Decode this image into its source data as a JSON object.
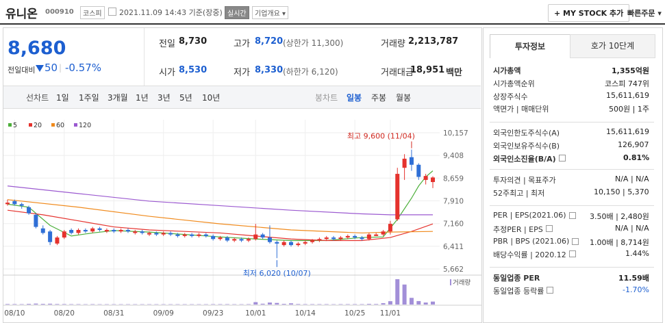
{
  "header": {
    "name": "유니온",
    "code": "000910",
    "market": "코스피",
    "time": "2021.11.09 14:43 기준(장중)",
    "realtime": "실시간",
    "company_info": "기업개요",
    "my_stock": "+ MY STOCK 추가",
    "quick_order": "빠른주문"
  },
  "price": {
    "current": "8,680",
    "change_label": "전일대비",
    "change": "50",
    "change_pct": "-0.57%"
  },
  "summary": [
    {
      "label": "전일",
      "value": "8,730"
    },
    {
      "label": "고가",
      "value": "8,720",
      "note": "(상한가 11,300)"
    },
    {
      "label": "거래량",
      "value": "2,213,787"
    },
    {
      "label": "시가",
      "value": "8,530"
    },
    {
      "label": "저가",
      "value": "8,330",
      "note": "(하한가 6,120)"
    },
    {
      "label": "거래대금",
      "value": "18,951",
      "unit": "백만"
    }
  ],
  "chart_tabs": {
    "line_label": "선차트",
    "line": [
      "1일",
      "1주일",
      "3개월",
      "1년",
      "3년",
      "5년",
      "10년"
    ],
    "candle_label": "봉차트",
    "candle": [
      "일봉",
      "주봉",
      "월봉"
    ]
  },
  "chart_data": {
    "type": "candlestick",
    "up_color": "#e5322d",
    "down_color": "#2f6fd6",
    "volume_color": "#a28fd8",
    "categories": [
      null,
      "08/10",
      null,
      null,
      null,
      null,
      null,
      null,
      "08/20",
      null,
      null,
      null,
      null,
      null,
      null,
      "08/31",
      null,
      null,
      null,
      null,
      null,
      null,
      "09/09",
      null,
      null,
      null,
      null,
      null,
      null,
      "09/23",
      null,
      null,
      null,
      null,
      null,
      "10/01",
      null,
      null,
      null,
      null,
      null,
      null,
      "10/14",
      null,
      null,
      null,
      null,
      null,
      null,
      "10/25",
      null,
      null,
      null,
      null,
      "11/01",
      null,
      null,
      null,
      null,
      null,
      null
    ],
    "open": [
      7800,
      7900,
      7800,
      7700,
      7450,
      7000,
      6900,
      6500,
      6700,
      6950,
      6850,
      6950,
      6900,
      7000,
      6900,
      6950,
      6900,
      6950,
      6850,
      6900,
      6800,
      6850,
      6800,
      6850,
      6800,
      6750,
      6800,
      6750,
      6800,
      6750,
      6650,
      6700,
      6600,
      6650,
      6600,
      6650,
      6800,
      6700,
      6550,
      6450,
      6550,
      6450,
      6500,
      6550,
      6600,
      6650,
      6700,
      6650,
      6700,
      6750,
      6700,
      6650,
      6750,
      6800,
      6900,
      7300,
      9000,
      9350,
      9100,
      8600,
      8530
    ],
    "high": [
      7950,
      7950,
      7850,
      7750,
      7500,
      7100,
      6950,
      6750,
      6950,
      7000,
      7000,
      7000,
      7050,
      7050,
      7000,
      7000,
      7000,
      7000,
      6950,
      6950,
      6900,
      6900,
      6900,
      6900,
      6850,
      6850,
      6850,
      6850,
      6850,
      6800,
      6750,
      6750,
      6700,
      6700,
      6700,
      7150,
      6850,
      7100,
      6600,
      6600,
      6600,
      6550,
      6600,
      6650,
      6700,
      6750,
      6750,
      6750,
      6800,
      6800,
      6750,
      6850,
      6850,
      6950,
      7250,
      9000,
      9450,
      9600,
      9150,
      8800,
      8720
    ],
    "low": [
      7750,
      7750,
      7650,
      7450,
      7000,
      6800,
      6450,
      6450,
      6650,
      6800,
      6800,
      6850,
      6850,
      6900,
      6850,
      6850,
      6850,
      6850,
      6800,
      6800,
      6750,
      6750,
      6750,
      6750,
      6700,
      6700,
      6700,
      6700,
      6700,
      6600,
      6600,
      6550,
      6550,
      6550,
      6550,
      6600,
      6650,
      6500,
      6020,
      6400,
      6400,
      6400,
      6450,
      6500,
      6550,
      6600,
      6600,
      6600,
      6650,
      6650,
      6600,
      6600,
      6750,
      6750,
      6800,
      7250,
      8600,
      8900,
      8600,
      8450,
      8330
    ],
    "close": [
      7850,
      7800,
      7750,
      7500,
      7050,
      6850,
      6550,
      6700,
      6900,
      6850,
      6950,
      6900,
      7000,
      6950,
      6950,
      6900,
      6950,
      6900,
      6900,
      6850,
      6850,
      6800,
      6850,
      6800,
      6750,
      6800,
      6750,
      6800,
      6750,
      6650,
      6700,
      6600,
      6650,
      6600,
      6650,
      6800,
      6700,
      6550,
      6500,
      6550,
      6450,
      6500,
      6550,
      6600,
      6650,
      6700,
      6650,
      6700,
      6750,
      6700,
      6650,
      6800,
      6800,
      6900,
      7150,
      8800,
      9300,
      9100,
      8700,
      8730,
      8680
    ],
    "volume": [
      400000,
      350000,
      300000,
      500000,
      700000,
      500000,
      600000,
      400000,
      350000,
      300000,
      300000,
      250000,
      300000,
      250000,
      250000,
      250000,
      250000,
      250000,
      250000,
      250000,
      250000,
      250000,
      250000,
      250000,
      250000,
      250000,
      250000,
      250000,
      250000,
      300000,
      300000,
      300000,
      250000,
      250000,
      300000,
      1800000,
      600000,
      1500000,
      1200000,
      500000,
      900000,
      400000,
      300000,
      300000,
      300000,
      300000,
      250000,
      300000,
      300000,
      300000,
      300000,
      500000,
      400000,
      1000000,
      2500000,
      19000000,
      15000000,
      5000000,
      2600000,
      1500000,
      2213787
    ],
    "volume_label": "거래량",
    "ylim": [
      5505,
      10472
    ],
    "yticks": [
      {
        "value": 10157,
        "label": "10,157"
      },
      {
        "value": 9408,
        "label": "9,408"
      },
      {
        "value": 8659,
        "label": "8,659"
      },
      {
        "value": 7910,
        "label": "7,910"
      },
      {
        "value": 7160,
        "label": "7,160"
      },
      {
        "value": 6411,
        "label": "6,411"
      },
      {
        "value": 5662,
        "label": "5,662"
      }
    ],
    "grid": true,
    "moving_averages": [
      {
        "name": "5",
        "color": "#4caf3a",
        "x": [
          0,
          3,
          6,
          9,
          12,
          15,
          20,
          25,
          30,
          35,
          40,
          45,
          50,
          53,
          55,
          56,
          57,
          58,
          59,
          60
        ],
        "values": [
          7800,
          7700,
          7100,
          6750,
          6850,
          6930,
          6880,
          6800,
          6720,
          6650,
          6600,
          6600,
          6700,
          6720,
          7300,
          7650,
          8000,
          8400,
          8700,
          8900
        ]
      },
      {
        "name": "20",
        "color": "#e5322d",
        "x": [
          0,
          5,
          10,
          15,
          20,
          25,
          30,
          35,
          40,
          45,
          50,
          54,
          57,
          60
        ],
        "values": [
          7600,
          7450,
          7250,
          7050,
          6950,
          6900,
          6850,
          6750,
          6650,
          6600,
          6600,
          6700,
          6900,
          7150
        ]
      },
      {
        "name": "60",
        "color": "#f08a1c",
        "x": [
          0,
          10,
          20,
          30,
          40,
          50,
          54,
          60
        ],
        "values": [
          7950,
          7700,
          7400,
          7150,
          6950,
          6850,
          6880,
          6900
        ]
      },
      {
        "name": "120",
        "color": "#9b59d0",
        "x": [
          0,
          10,
          20,
          30,
          40,
          50,
          54,
          60
        ],
        "values": [
          8400,
          8150,
          7900,
          7750,
          7600,
          7480,
          7450,
          7450
        ]
      }
    ],
    "annotations": [
      {
        "text": "최고 9,600 (11/04)",
        "index": 57,
        "at": "high",
        "color": "#d0281f"
      },
      {
        "text": "최저 6,020 (10/07)",
        "index": 38,
        "at": "low",
        "color": "#1d5fd0"
      }
    ]
  },
  "info_tabs": [
    "투자정보",
    "호가 10단계"
  ],
  "info": [
    [
      {
        "label": "시가총액",
        "value": "1,355억원",
        "bold": true
      },
      {
        "label": "시가총액순위",
        "value": "코스피 747위"
      },
      {
        "label": "상장주식수",
        "value": "15,611,619"
      },
      {
        "label": "액면가 | 매매단위",
        "value": "500원 | 1주"
      }
    ],
    [
      {
        "label": "외국인한도주식수(A)",
        "value": "15,611,619"
      },
      {
        "label": "외국인보유주식수(B)",
        "value": "126,907"
      },
      {
        "label": "외국인소진율(B/A)",
        "value": "0.81%",
        "bold": true,
        "help": true
      }
    ],
    [
      {
        "label": "투자의견 | 목표주가",
        "value": "N/A | N/A"
      },
      {
        "label": "52주최고 | 최저",
        "value": "10,150 | 5,370"
      }
    ],
    [
      {
        "label": "PER | EPS(2021.06)",
        "value": "3.50배 | 2,480원",
        "help": true
      },
      {
        "label": "추정PER | EPS",
        "value": "N/A | N/A",
        "help": true
      },
      {
        "label": "PBR | BPS (2021.06)",
        "value": "1.00배 | 8,714원",
        "help": true
      },
      {
        "label": "배당수익률 | 2020.12",
        "value": "1.44%",
        "help": true
      }
    ],
    [
      {
        "label": "동일업종 PER",
        "value": "11.59배",
        "bold": true
      },
      {
        "label": "동일업종 등락률",
        "value": "-1.70%",
        "color": "#1d5fd0",
        "help": true
      }
    ]
  ]
}
